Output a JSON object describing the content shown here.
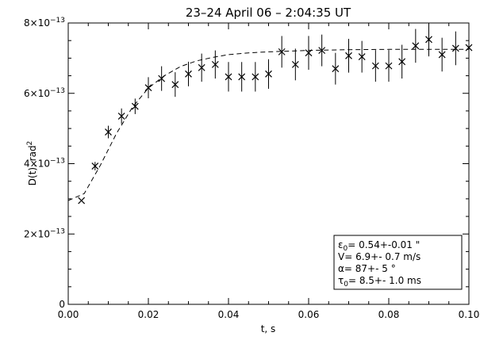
{
  "chart_data": {
    "type": "scatter",
    "title": "23–24 April 06 – 2:04:35 UT",
    "xlabel": "t, s",
    "ylabel": "D(t), rad",
    "ylabel_sup": "2",
    "xlim": [
      0.0,
      0.1
    ],
    "ylim": [
      0,
      8e-13
    ],
    "x_ticks": [
      {
        "value": 0.0,
        "label": "0.00"
      },
      {
        "value": 0.02,
        "label": "0.02"
      },
      {
        "value": 0.04,
        "label": "0.04"
      },
      {
        "value": 0.06,
        "label": "0.06"
      },
      {
        "value": 0.08,
        "label": "0.08"
      },
      {
        "value": 0.1,
        "label": "0.10"
      }
    ],
    "y_ticks": [
      {
        "value": 0,
        "label": "0",
        "exp": ""
      },
      {
        "value": 2e-13,
        "label": "2×10",
        "exp": "−13"
      },
      {
        "value": 4e-13,
        "label": "4×10",
        "exp": "−13"
      },
      {
        "value": 6e-13,
        "label": "6×10",
        "exp": "−13"
      },
      {
        "value": 8e-13,
        "label": "8×10",
        "exp": "−13"
      }
    ],
    "measured": {
      "marker": "x",
      "x": [
        0.0033,
        0.0067,
        0.01,
        0.0133,
        0.0167,
        0.02,
        0.0233,
        0.0267,
        0.03,
        0.0333,
        0.0367,
        0.04,
        0.0433,
        0.0467,
        0.05,
        0.0533,
        0.0567,
        0.06,
        0.0633,
        0.0667,
        0.07,
        0.0733,
        0.0767,
        0.08,
        0.0833,
        0.0867,
        0.09,
        0.0933,
        0.0967,
        0.1
      ],
      "y": [
        2.95e-13,
        3.93e-13,
        4.9e-13,
        5.35e-13,
        5.63e-13,
        6.16e-13,
        6.42e-13,
        6.25e-13,
        6.55e-13,
        6.73e-13,
        6.82e-13,
        6.47e-13,
        6.47e-13,
        6.47e-13,
        6.55e-13,
        7.18e-13,
        6.82e-13,
        7.15e-13,
        7.22e-13,
        6.7e-13,
        7.07e-13,
        7.04e-13,
        6.78e-13,
        6.78e-13,
        6.9e-13,
        7.35e-13,
        7.53e-13,
        7.1e-13,
        7.28e-13,
        7.3e-13
      ],
      "err": [
        0,
        1.2e-14,
        1.8e-14,
        2.2e-14,
        2.2e-14,
        3e-14,
        3.5e-14,
        3.5e-14,
        3.5e-14,
        4e-14,
        4e-14,
        4.2e-14,
        4.2e-14,
        4.2e-14,
        4.2e-14,
        4.5e-14,
        4.5e-14,
        4.8e-14,
        4.5e-14,
        4.5e-14,
        4.8e-14,
        4.5e-14,
        4.5e-14,
        4.5e-14,
        4.8e-14,
        4.8e-14,
        4.8e-14,
        4.8e-14,
        4.8e-14,
        3e-14
      ]
    },
    "model": {
      "style": "dashed",
      "x": [
        0.0,
        0.004,
        0.008,
        0.012,
        0.016,
        0.02,
        0.024,
        0.028,
        0.032,
        0.036,
        0.04,
        0.045,
        0.05,
        0.055,
        0.06,
        0.07,
        0.08,
        0.09,
        0.1
      ],
      "y": [
        2.95e-13,
        3.15e-13,
        3.95e-13,
        4.85e-13,
        5.6e-13,
        6.15e-13,
        6.5e-13,
        6.76e-13,
        6.92e-13,
        7.02e-13,
        7.1e-13,
        7.15e-13,
        7.18e-13,
        7.2e-13,
        7.22e-13,
        7.24e-13,
        7.25e-13,
        7.25e-13,
        7.25e-13
      ]
    },
    "legend": {
      "placement": "bottom-right",
      "lines": [
        {
          "sym": "ε",
          "sub": "0",
          "text": "= 0.54+-0.01 \""
        },
        {
          "sym": "V",
          "sub": "",
          "text": "=  6.9+- 0.7 m/s"
        },
        {
          "sym": "α",
          "sub": "",
          "text": "=  87+-  5 °"
        },
        {
          "sym": "τ",
          "sub": "0",
          "text": "=  8.5+- 1.0 ms"
        }
      ]
    },
    "grid": false
  }
}
